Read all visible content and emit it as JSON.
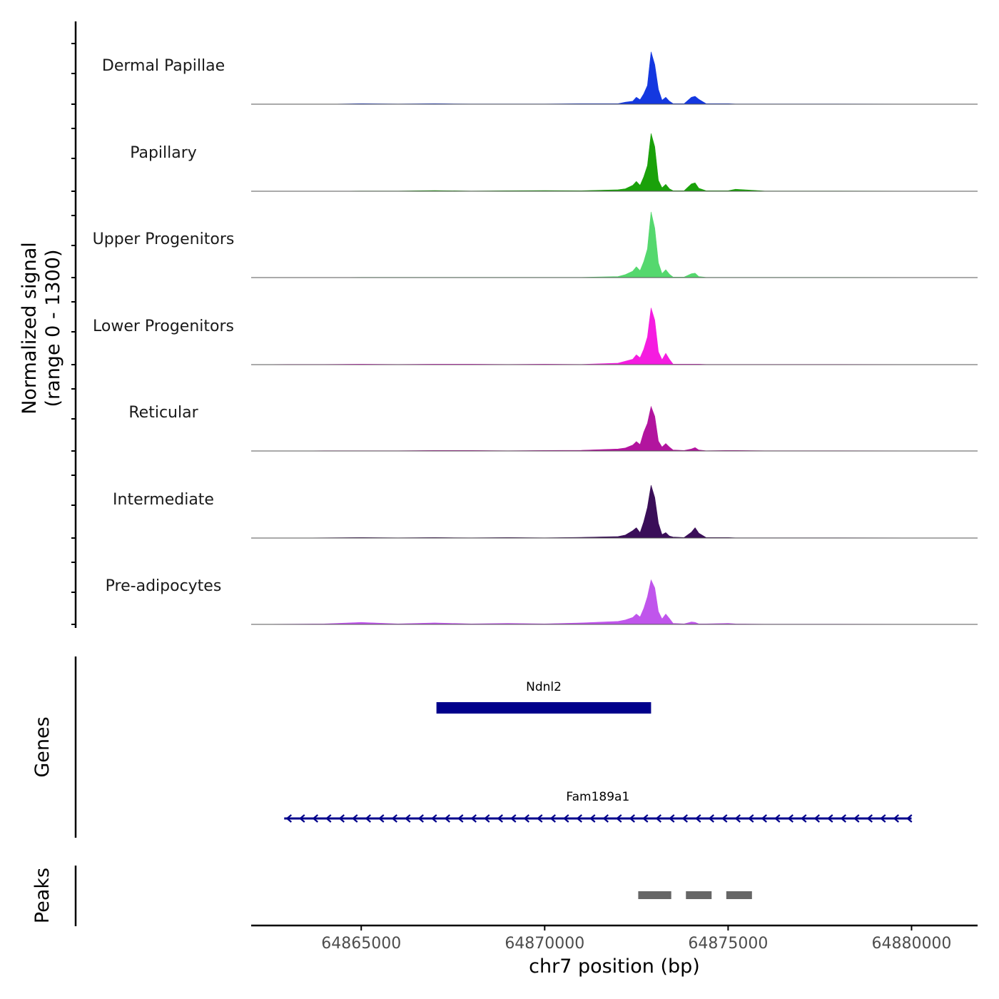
{
  "chart_data": {
    "type": "area",
    "chromosome": "chr7",
    "xlabel": "chr7 position (bp)",
    "xlim": [
      64862000,
      64881800
    ],
    "x_ticks": [
      64865000,
      64870000,
      64875000,
      64880000
    ],
    "x_tick_labels": [
      "64865000",
      "64870000",
      "64875000",
      "64880000"
    ],
    "signal_axis": {
      "label_line1": "Normalized signal",
      "label_line2": "(range 0 - 1300)",
      "range": [
        0,
        1300
      ]
    },
    "positions": [
      64862000,
      64863000,
      64864000,
      64865000,
      64866000,
      64867000,
      64868000,
      64869000,
      64870000,
      64871000,
      64872000,
      64872200,
      64872400,
      64872500,
      64872600,
      64872700,
      64872800,
      64872900,
      64873000,
      64873100,
      64873200,
      64873300,
      64873400,
      64873500,
      64873800,
      64874000,
      64874100,
      64874200,
      64874400,
      64875000,
      64875200,
      64876000,
      64878000,
      64881800
    ],
    "series": [
      {
        "name": "Dermal Papillae",
        "color": "#1438e0",
        "values": [
          0,
          0,
          0,
          10,
          5,
          10,
          5,
          5,
          5,
          10,
          10,
          40,
          60,
          140,
          90,
          210,
          380,
          1060,
          800,
          300,
          80,
          140,
          60,
          10,
          10,
          140,
          160,
          100,
          10,
          10,
          5,
          5,
          5,
          0
        ]
      },
      {
        "name": "Papillary",
        "color": "#1aa10a",
        "values": [
          0,
          0,
          0,
          5,
          5,
          15,
          5,
          10,
          15,
          10,
          30,
          50,
          120,
          200,
          120,
          290,
          520,
          1170,
          900,
          220,
          70,
          140,
          50,
          10,
          10,
          150,
          170,
          60,
          10,
          10,
          40,
          5,
          5,
          0
        ]
      },
      {
        "name": "Upper Progenitors",
        "color": "#55d86e",
        "values": [
          0,
          0,
          0,
          5,
          5,
          5,
          5,
          5,
          5,
          5,
          20,
          60,
          130,
          220,
          140,
          320,
          580,
          1330,
          1000,
          300,
          80,
          160,
          70,
          10,
          10,
          80,
          90,
          20,
          5,
          5,
          5,
          5,
          5,
          0
        ]
      },
      {
        "name": "Lower Progenitors",
        "color": "#f51ce0",
        "values": [
          0,
          5,
          5,
          10,
          5,
          10,
          10,
          5,
          10,
          5,
          30,
          70,
          110,
          200,
          140,
          310,
          560,
          1150,
          900,
          260,
          100,
          230,
          110,
          10,
          10,
          10,
          10,
          10,
          5,
          5,
          5,
          5,
          5,
          0
        ]
      },
      {
        "name": "Reticular",
        "color": "#b2149e",
        "values": [
          0,
          0,
          5,
          5,
          5,
          10,
          10,
          5,
          10,
          15,
          40,
          60,
          120,
          190,
          130,
          380,
          560,
          900,
          700,
          200,
          80,
          150,
          80,
          20,
          10,
          40,
          70,
          20,
          5,
          10,
          10,
          5,
          5,
          0
        ]
      },
      {
        "name": "Intermediate",
        "color": "#3a0e58",
        "values": [
          0,
          0,
          5,
          10,
          5,
          10,
          5,
          10,
          5,
          15,
          30,
          60,
          150,
          210,
          110,
          330,
          620,
          1070,
          820,
          300,
          70,
          110,
          40,
          20,
          10,
          120,
          210,
          100,
          10,
          10,
          5,
          5,
          5,
          0
        ]
      },
      {
        "name": "Pre-adipocytes",
        "color": "#c055ec",
        "values": [
          0,
          5,
          10,
          40,
          10,
          30,
          10,
          20,
          10,
          30,
          60,
          90,
          140,
          210,
          150,
          320,
          560,
          900,
          740,
          260,
          110,
          210,
          120,
          20,
          10,
          50,
          40,
          10,
          10,
          20,
          10,
          5,
          5,
          0
        ]
      }
    ],
    "genes_track": {
      "label": "Genes",
      "genes": [
        {
          "name": "Ndnl2",
          "start": 64867050,
          "end": 64872900,
          "strand": "+",
          "color": "#00008b"
        },
        {
          "name": "Fam189a1",
          "start": 64862900,
          "end": 64880000,
          "strand": "-",
          "color": "#00008b"
        }
      ]
    },
    "peaks_track": {
      "label": "Peaks",
      "color": "#666666",
      "peaks": [
        {
          "start": 64872550,
          "end": 64873450
        },
        {
          "start": 64873850,
          "end": 64874550
        },
        {
          "start": 64874950,
          "end": 64875650
        }
      ]
    }
  }
}
